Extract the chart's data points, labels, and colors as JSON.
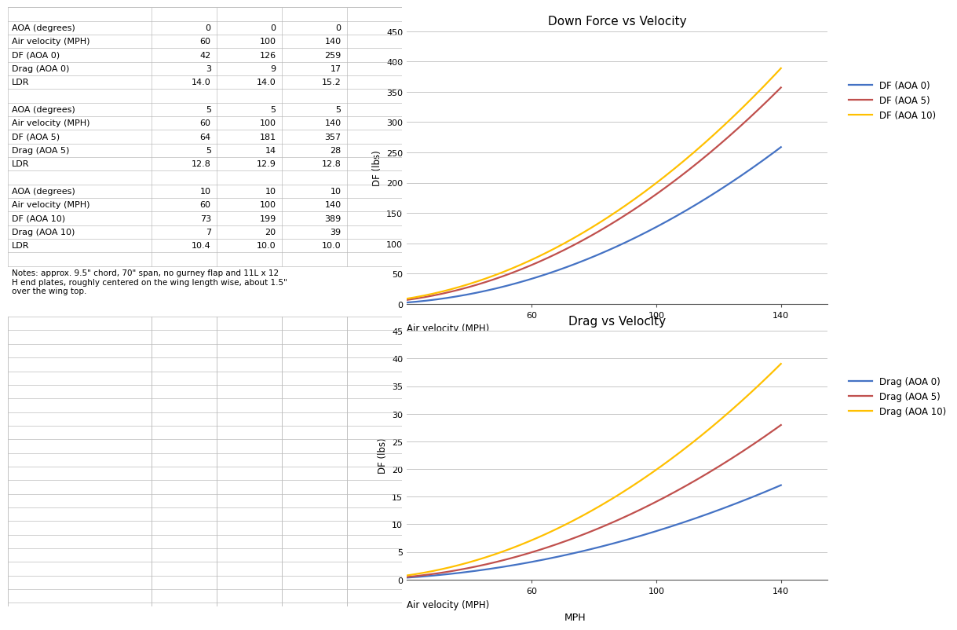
{
  "table_data": {
    "aoa0": {
      "velocities": [
        60,
        100,
        140
      ],
      "df": [
        42,
        126,
        259
      ],
      "drag": [
        3,
        9,
        17
      ],
      "ldr": [
        14.0,
        14.0,
        15.2
      ]
    },
    "aoa5": {
      "velocities": [
        60,
        100,
        140
      ],
      "df": [
        64,
        181,
        357
      ],
      "drag": [
        5,
        14,
        28
      ],
      "ldr": [
        12.8,
        12.9,
        12.8
      ]
    },
    "aoa10": {
      "velocities": [
        60,
        100,
        140
      ],
      "df": [
        73,
        199,
        389
      ],
      "drag": [
        7,
        20,
        39
      ],
      "ldr": [
        10.4,
        10.0,
        10.0
      ]
    }
  },
  "notes": "Notes: approx. 9.5\" chord, 70\" span, no gurney flap and 11L x 12\nH end plates, roughly centered on the wing length wise, about 1.5\"\nover the wing top.",
  "df_chart": {
    "title": "Down Force vs Velocity",
    "ylabel": "DF (lbs)",
    "ylim": [
      0,
      450
    ],
    "yticks": [
      0,
      50,
      100,
      150,
      200,
      250,
      300,
      350,
      400,
      450
    ],
    "xlim_min": 20,
    "xlim_max": 155,
    "xtick_vals": [
      60.0,
      100.0,
      140.0
    ],
    "lines": [
      {
        "label": "DF (AOA 0)",
        "color": "#4472C4"
      },
      {
        "label": "DF (AOA 5)",
        "color": "#C0504D"
      },
      {
        "label": "DF (AOA 10)",
        "color": "#FFC000"
      }
    ]
  },
  "drag_chart": {
    "title": "Drag vs Velocity",
    "ylabel": "DF (lbs)",
    "ylim": [
      0,
      45
    ],
    "yticks": [
      0,
      5,
      10,
      15,
      20,
      25,
      30,
      35,
      40,
      45
    ],
    "xlim_min": 20,
    "xlim_max": 155,
    "xtick_vals": [
      60.0,
      100.0,
      140.0
    ],
    "lines": [
      {
        "label": "Drag (AOA 0)",
        "color": "#4472C4"
      },
      {
        "label": "Drag (AOA 5)",
        "color": "#C0504D"
      },
      {
        "label": "Drag (AOA 10)",
        "color": "#FFC000"
      }
    ]
  },
  "bg_color": "#FFFFFF",
  "grid_color": "#BEBEBE",
  "font_size_table": 8.0,
  "font_size_chart": 8.5,
  "table_rows": [
    {
      "cells": [
        [
          "AOA (degrees)",
          "left"
        ],
        [
          "0",
          "right"
        ],
        [
          "0",
          "right"
        ],
        [
          "0",
          "right"
        ]
      ]
    },
    {
      "cells": [
        [
          "Air velocity (MPH)",
          "left"
        ],
        [
          "60",
          "right"
        ],
        [
          "100",
          "right"
        ],
        [
          "140",
          "right"
        ]
      ]
    },
    {
      "cells": [
        [
          "DF (AOA 0)",
          "left"
        ],
        [
          "42",
          "right"
        ],
        [
          "126",
          "right"
        ],
        [
          "259",
          "right"
        ]
      ]
    },
    {
      "cells": [
        [
          "Drag (AOA 0)",
          "left"
        ],
        [
          "3",
          "right"
        ],
        [
          "9",
          "right"
        ],
        [
          "17",
          "right"
        ]
      ]
    },
    {
      "cells": [
        [
          "LDR",
          "left"
        ],
        [
          "14.0",
          "right"
        ],
        [
          "14.0",
          "right"
        ],
        [
          "15.2",
          "right"
        ]
      ]
    },
    {
      "cells": []
    },
    {
      "cells": [
        [
          "AOA (degrees)",
          "left"
        ],
        [
          "5",
          "right"
        ],
        [
          "5",
          "right"
        ],
        [
          "5",
          "right"
        ]
      ]
    },
    {
      "cells": [
        [
          "Air velocity (MPH)",
          "left"
        ],
        [
          "60",
          "right"
        ],
        [
          "100",
          "right"
        ],
        [
          "140",
          "right"
        ]
      ]
    },
    {
      "cells": [
        [
          "DF (AOA 5)",
          "left"
        ],
        [
          "64",
          "right"
        ],
        [
          "181",
          "right"
        ],
        [
          "357",
          "right"
        ]
      ]
    },
    {
      "cells": [
        [
          "Drag (AOA 5)",
          "left"
        ],
        [
          "5",
          "right"
        ],
        [
          "14",
          "right"
        ],
        [
          "28",
          "right"
        ]
      ]
    },
    {
      "cells": [
        [
          "LDR",
          "left"
        ],
        [
          "12.8",
          "right"
        ],
        [
          "12.9",
          "right"
        ],
        [
          "12.8",
          "right"
        ]
      ]
    },
    {
      "cells": []
    },
    {
      "cells": [
        [
          "AOA (degrees)",
          "left"
        ],
        [
          "10",
          "right"
        ],
        [
          "10",
          "right"
        ],
        [
          "10",
          "right"
        ]
      ]
    },
    {
      "cells": [
        [
          "Air velocity (MPH)",
          "left"
        ],
        [
          "60",
          "right"
        ],
        [
          "100",
          "right"
        ],
        [
          "140",
          "right"
        ]
      ]
    },
    {
      "cells": [
        [
          "DF (AOA 10)",
          "left"
        ],
        [
          "73",
          "right"
        ],
        [
          "199",
          "right"
        ],
        [
          "389",
          "right"
        ]
      ]
    },
    {
      "cells": [
        [
          "Drag (AOA 10)",
          "left"
        ],
        [
          "7",
          "right"
        ],
        [
          "20",
          "right"
        ],
        [
          "39",
          "right"
        ]
      ]
    },
    {
      "cells": [
        [
          "LDR",
          "left"
        ],
        [
          "10.4",
          "right"
        ],
        [
          "10.0",
          "right"
        ],
        [
          "10.0",
          "right"
        ]
      ]
    },
    {
      "cells": []
    }
  ]
}
